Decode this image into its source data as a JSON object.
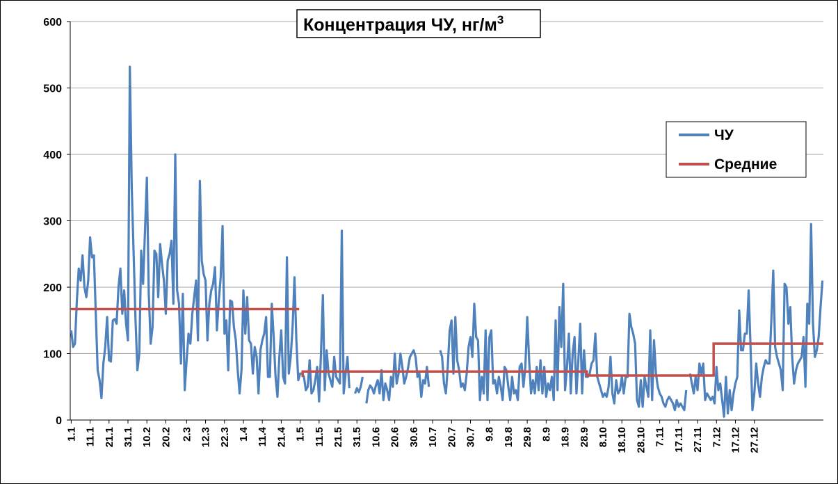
{
  "chart_data": {
    "type": "line",
    "title": "Концентрация ЧУ, нг/м",
    "title_superscript": "3",
    "xlabel": "",
    "ylabel": "",
    "ylim": [
      0,
      600
    ],
    "yticks": [
      0,
      100,
      200,
      300,
      400,
      500,
      600
    ],
    "grid": "horizontal",
    "legend_position": "right",
    "x_tick_labels": [
      "1.1",
      "11.1",
      "21.1",
      "31.1",
      "10.2",
      "20.2",
      "2.3",
      "12.3",
      "22.3",
      "1.4",
      "11.4",
      "21.4",
      "1.5",
      "11.5",
      "21.5",
      "31.5",
      "10.6",
      "20.6",
      "30.6",
      "10.7",
      "20.7",
      "30.7",
      "9.8",
      "19.8",
      "29.8",
      "8.9",
      "18.9",
      "28.9",
      "8.10",
      "18.10",
      "28.10",
      "7.11",
      "17.11",
      "27.11",
      "7.12",
      "17.12",
      "27.12"
    ],
    "series": [
      {
        "name": "ЧУ",
        "color": "#4f81bd",
        "values": [
          135,
          110,
          115,
          180,
          228,
          210,
          248,
          200,
          185,
          210,
          275,
          245,
          248,
          160,
          75,
          60,
          33,
          85,
          110,
          155,
          90,
          88,
          150,
          152,
          145,
          200,
          228,
          160,
          195,
          145,
          120,
          532,
          350,
          250,
          150,
          75,
          100,
          255,
          205,
          285,
          365,
          190,
          115,
          140,
          255,
          250,
          185,
          265,
          235,
          210,
          160,
          240,
          250,
          270,
          175,
          400,
          195,
          175,
          85,
          190,
          45,
          90,
          130,
          115,
          160,
          185,
          210,
          120,
          360,
          240,
          220,
          210,
          120,
          175,
          195,
          205,
          230,
          135,
          180,
          215,
          292,
          130,
          150,
          75,
          180,
          178,
          140,
          120,
          75,
          40,
          75,
          195,
          130,
          185,
          120,
          115,
          70,
          110,
          95,
          40,
          105,
          120,
          130,
          155,
          65,
          65,
          175,
          125,
          65,
          35,
          95,
          135,
          65,
          55,
          245,
          70,
          95,
          140,
          215,
          120,
          60,
          70,
          70,
          65,
          45,
          50,
          90,
          40,
          45,
          60,
          80,
          28,
          100,
          188,
          45,
          105,
          70,
          60,
          50,
          95,
          65,
          60,
          55,
          285,
          40,
          70,
          95,
          48,
          null,
          null,
          40,
          48,
          42,
          50,
          65,
          null,
          25,
          45,
          52,
          48,
          40,
          52,
          60,
          40,
          75,
          30,
          55,
          45,
          30,
          65,
          50,
          100,
          55,
          70,
          100,
          80,
          55,
          65,
          78,
          95,
          100,
          105,
          95,
          65,
          70,
          35,
          60,
          55,
          80,
          50,
          null,
          null,
          null,
          null,
          null,
          105,
          95,
          55,
          40,
          80,
          135,
          150,
          70,
          155,
          90,
          75,
          50,
          55,
          45,
          70,
          110,
          125,
          95,
          175,
          125,
          120,
          30,
          65,
          40,
          135,
          30,
          125,
          135,
          55,
          60,
          40,
          65,
          50,
          30,
          80,
          75,
          50,
          30,
          65,
          40,
          45,
          30,
          80,
          85,
          50,
          80,
          155,
          90,
          40,
          60,
          40,
          80,
          45,
          90,
          40,
          80,
          35,
          55,
          45,
          65,
          30,
          150,
          45,
          170,
          110,
          205,
          45,
          80,
          130,
          40,
          100,
          125,
          40,
          90,
          145,
          40,
          105,
          65,
          65,
          70,
          85,
          90,
          130,
          65,
          55,
          45,
          35,
          40,
          35,
          50,
          95,
          40,
          25,
          60,
          40,
          45,
          65,
          40,
          65,
          65,
          160,
          140,
          130,
          115,
          30,
          20,
          60,
          20,
          65,
          50,
          35,
          135,
          30,
          120,
          70,
          50,
          40,
          35,
          25,
          20,
          30,
          35,
          30,
          25,
          15,
          30,
          20,
          25,
          20,
          15,
          45,
          null,
          70,
          55,
          40,
          65,
          45,
          85,
          70,
          85,
          30,
          40,
          35,
          30,
          35,
          25,
          80,
          45,
          55,
          30,
          5,
          65,
          10,
          45,
          15,
          40,
          55,
          65,
          165,
          105,
          105,
          130,
          130,
          195,
          110,
          15,
          40,
          85,
          55,
          35,
          65,
          80,
          90,
          85,
          85,
          150,
          225,
          110,
          95,
          85,
          75,
          45,
          205,
          200,
          145,
          170,
          95,
          55,
          75,
          85,
          90,
          95,
          125,
          50,
          175,
          145,
          295,
          145,
          95,
          105,
          125,
          170,
          210
        ],
        "segment_means": [
          {
            "from": "1.1",
            "to": "30.4",
            "value": 167
          },
          {
            "from": "1.5",
            "to": "29.9",
            "value": 73
          },
          {
            "from": "30.9",
            "to": "5.12",
            "value": 67
          },
          {
            "from": "6.12",
            "to": "31.12",
            "value": 115
          }
        ]
      },
      {
        "name": "Средние",
        "color": "#c0504d",
        "step": true
      }
    ]
  }
}
